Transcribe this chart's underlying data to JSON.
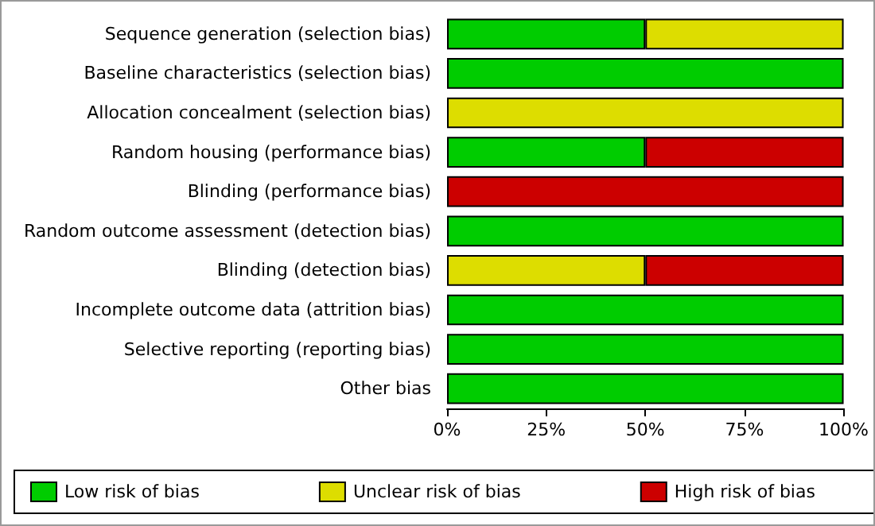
{
  "chart_data": {
    "type": "bar",
    "orientation": "horizontal",
    "stacked": true,
    "categories": [
      "Sequence generation (selection bias)",
      "Baseline characteristics (selection bias)",
      "Allocation concealment (selection bias)",
      "Random housing (performance bias)",
      "Blinding (performance bias)",
      "Random outcome assessment (detection bias)",
      "Blinding (detection bias)",
      "Incomplete outcome data (attrition bias)",
      "Selective reporting (reporting bias)",
      "Other bias"
    ],
    "series": [
      {
        "name": "Low risk of bias",
        "color": "#00cc00",
        "values": [
          50,
          100,
          0,
          50,
          0,
          100,
          0,
          100,
          100,
          100
        ]
      },
      {
        "name": "Unclear risk of bias",
        "color": "#dddd00",
        "values": [
          50,
          0,
          100,
          0,
          0,
          0,
          50,
          0,
          0,
          0
        ]
      },
      {
        "name": "High risk of bias",
        "color": "#cc0000",
        "values": [
          0,
          0,
          0,
          50,
          100,
          0,
          50,
          0,
          0,
          0
        ]
      }
    ],
    "xlim": [
      0,
      100
    ],
    "xticks": [
      {
        "value": 0,
        "label": "0%"
      },
      {
        "value": 25,
        "label": "25%"
      },
      {
        "value": 50,
        "label": "50%"
      },
      {
        "value": 75,
        "label": "75%"
      },
      {
        "value": 100,
        "label": "100%"
      }
    ],
    "grid": false,
    "legend": "bottom"
  }
}
